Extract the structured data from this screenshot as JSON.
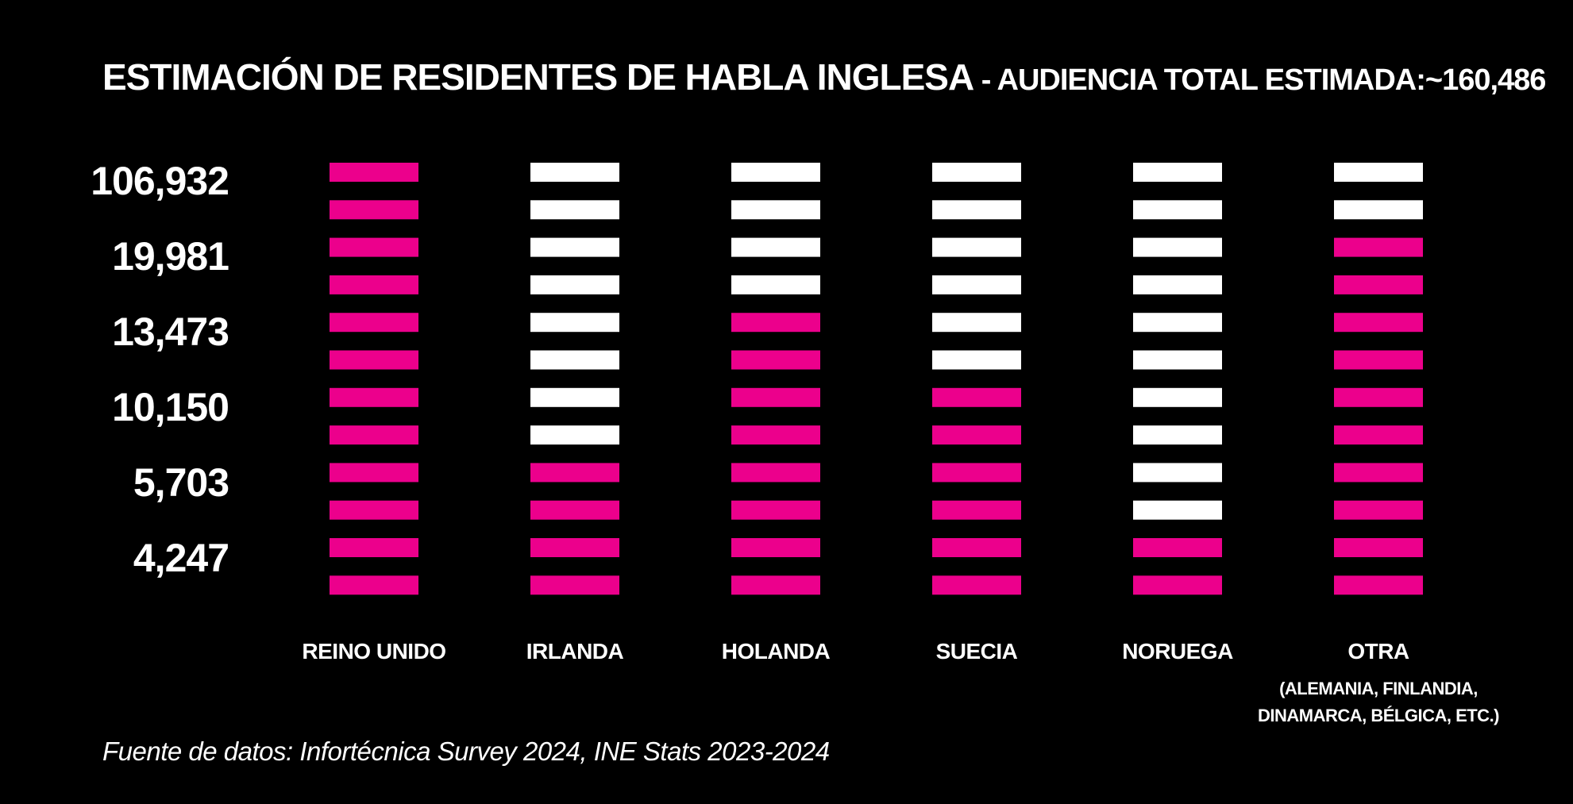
{
  "title": {
    "main": "ESTIMACIÓN DE RESIDENTES DE HABLA INGLESA",
    "separator": " - ",
    "subtitle": "AUDIENCIA TOTAL ESTIMADA:~160,486"
  },
  "source": "Fuente de datos: Infortécnica Survey 2024, INE Stats 2023-2024",
  "colors": {
    "background": "#000000",
    "highlight": "#ec008c",
    "neutral": "#ffffff",
    "text": "#ffffff"
  },
  "chart_data": {
    "type": "bar",
    "encoding": "stacked-bar-blocks",
    "blocks_per_column": 12,
    "y_tick_labels": [
      "106,932",
      "19,981",
      "13,473",
      "10,150",
      "5,703",
      "4,247"
    ],
    "categories": [
      "REINO UNIDO",
      "IRLANDA",
      "HOLANDA",
      "SUECIA",
      "NORUEGA",
      "OTRA"
    ],
    "category_notes": [
      "",
      "",
      "",
      "",
      "",
      "(ALEMANIA, FINLANDIA, DINAMARCA, BÉLGICA, ETC.)"
    ],
    "values": [
      106932,
      5703,
      13473,
      10150,
      4247,
      19981
    ],
    "highlighted_blocks": [
      12,
      4,
      8,
      6,
      2,
      10
    ]
  }
}
